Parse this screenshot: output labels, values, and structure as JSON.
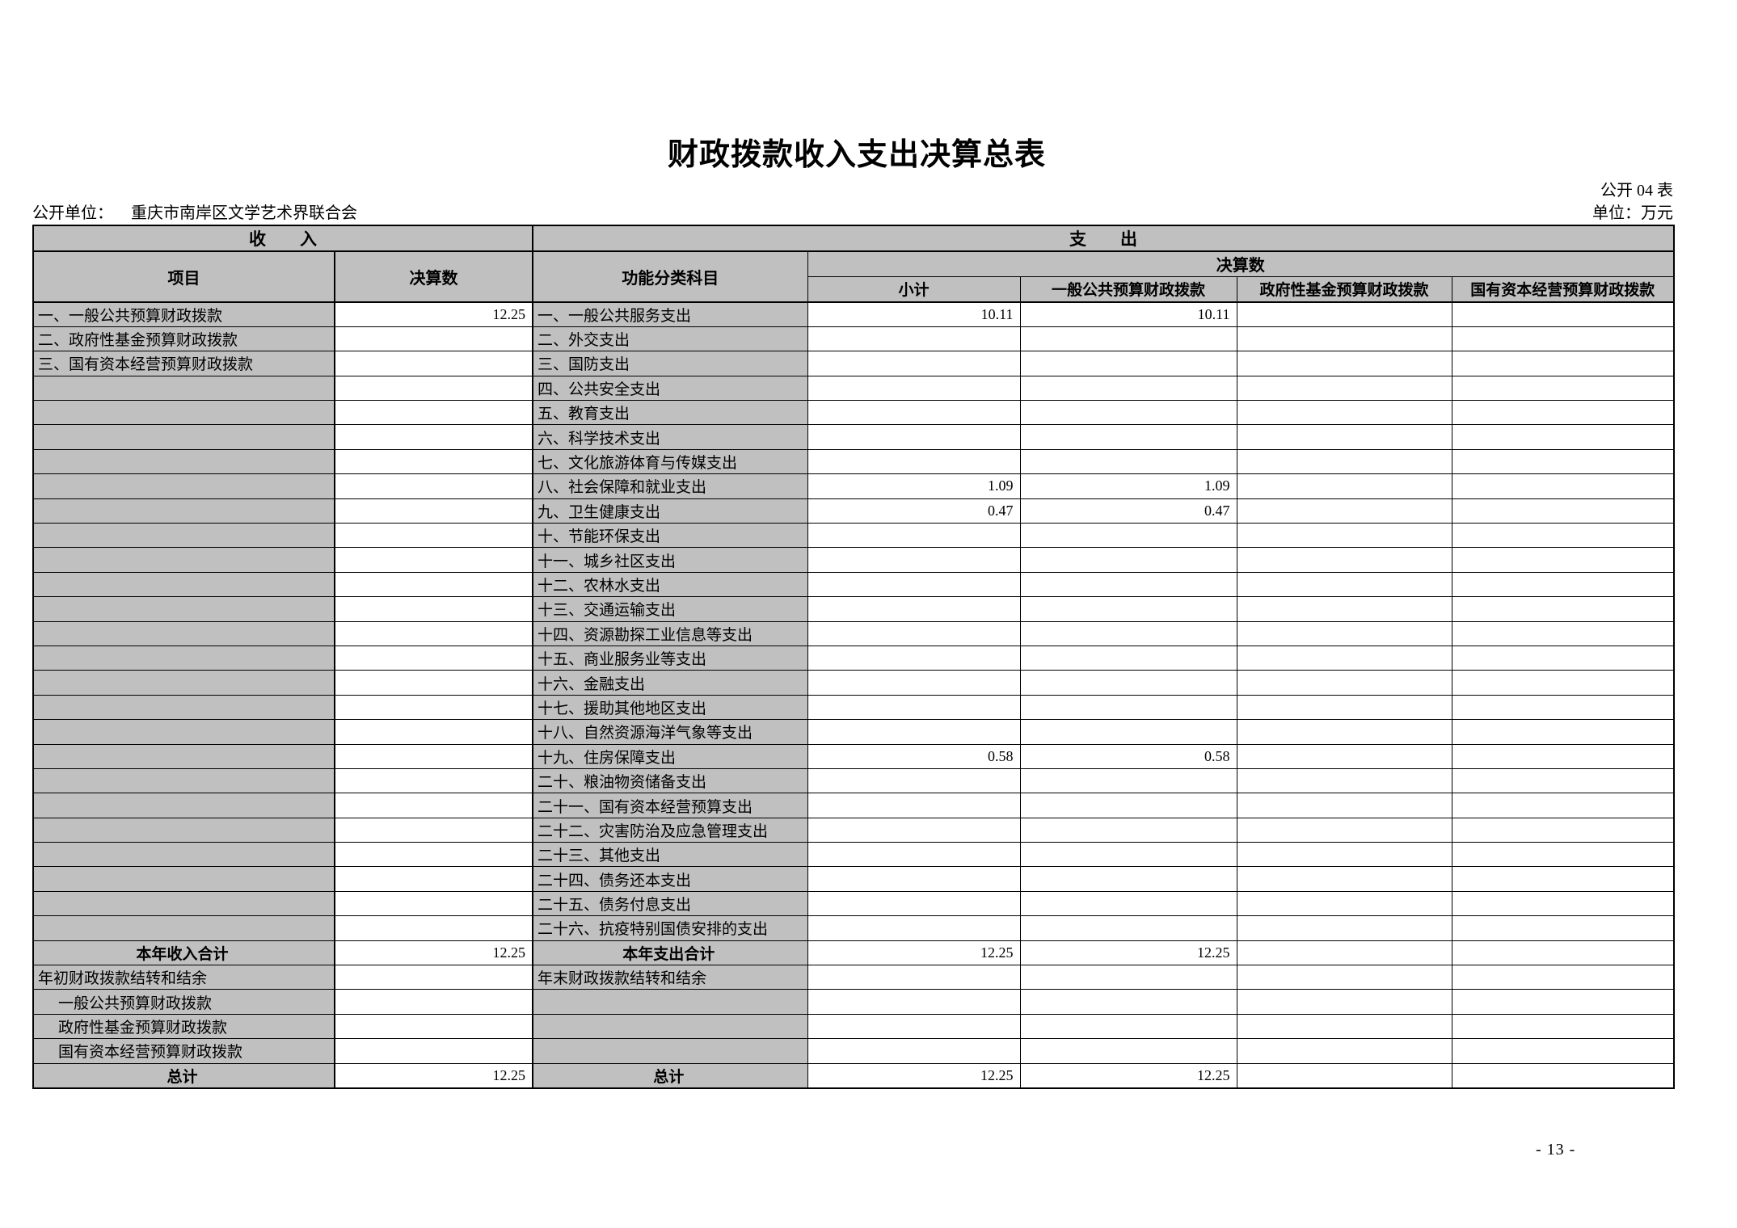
{
  "page": {
    "title": "财政拨款收入支出决算总表",
    "table_code": "公开 04 表",
    "unit_label": "公开单位：",
    "unit_name": "重庆市南岸区文学艺术界联合会",
    "unit_note": "单位：万元",
    "page_number": "- 13 -"
  },
  "table": {
    "section_income": "收　　入",
    "section_expenditure": "支　　出",
    "headers": {
      "item": "项目",
      "final_amount": "决算数",
      "functional_category": "功能分类科目",
      "final_amount_group": "决算数",
      "subtotal": "小计",
      "general_public_budget": "一般公共预算财政拨款",
      "gov_fund_budget": "政府性基金预算财政拨款",
      "state_capital_budget": "国有资本经营预算财政拨款"
    },
    "colors": {
      "header_fill": "#c0c0c0",
      "border": "#000000"
    },
    "rows": [
      {
        "style": "",
        "cells": [
          "一、一般公共预算财政拨款",
          "12.25",
          "一、一般公共服务支出",
          "10.11",
          "10.11",
          "",
          ""
        ]
      },
      {
        "style": "",
        "cells": [
          "二、政府性基金预算财政拨款",
          "",
          "二、外交支出",
          "",
          "",
          "",
          ""
        ]
      },
      {
        "style": "",
        "cells": [
          "三、国有资本经营预算财政拨款",
          "",
          "三、国防支出",
          "",
          "",
          "",
          ""
        ]
      },
      {
        "style": "",
        "cells": [
          "",
          "",
          "四、公共安全支出",
          "",
          "",
          "",
          ""
        ]
      },
      {
        "style": "",
        "cells": [
          "",
          "",
          "五、教育支出",
          "",
          "",
          "",
          ""
        ]
      },
      {
        "style": "",
        "cells": [
          "",
          "",
          "六、科学技术支出",
          "",
          "",
          "",
          ""
        ]
      },
      {
        "style": "",
        "cells": [
          "",
          "",
          "七、文化旅游体育与传媒支出",
          "",
          "",
          "",
          ""
        ]
      },
      {
        "style": "",
        "cells": [
          "",
          "",
          "八、社会保障和就业支出",
          "1.09",
          "1.09",
          "",
          ""
        ]
      },
      {
        "style": "",
        "cells": [
          "",
          "",
          "九、卫生健康支出",
          "0.47",
          "0.47",
          "",
          ""
        ]
      },
      {
        "style": "",
        "cells": [
          "",
          "",
          "十、节能环保支出",
          "",
          "",
          "",
          ""
        ]
      },
      {
        "style": "",
        "cells": [
          "",
          "",
          "十一、城乡社区支出",
          "",
          "",
          "",
          ""
        ]
      },
      {
        "style": "",
        "cells": [
          "",
          "",
          "十二、农林水支出",
          "",
          "",
          "",
          ""
        ]
      },
      {
        "style": "",
        "cells": [
          "",
          "",
          "十三、交通运输支出",
          "",
          "",
          "",
          ""
        ]
      },
      {
        "style": "",
        "cells": [
          "",
          "",
          "十四、资源勘探工业信息等支出",
          "",
          "",
          "",
          ""
        ]
      },
      {
        "style": "",
        "cells": [
          "",
          "",
          "十五、商业服务业等支出",
          "",
          "",
          "",
          ""
        ]
      },
      {
        "style": "",
        "cells": [
          "",
          "",
          "十六、金融支出",
          "",
          "",
          "",
          ""
        ]
      },
      {
        "style": "",
        "cells": [
          "",
          "",
          "十七、援助其他地区支出",
          "",
          "",
          "",
          ""
        ]
      },
      {
        "style": "",
        "cells": [
          "",
          "",
          "十八、自然资源海洋气象等支出",
          "",
          "",
          "",
          ""
        ]
      },
      {
        "style": "",
        "cells": [
          "",
          "",
          "十九、住房保障支出",
          "0.58",
          "0.58",
          "",
          ""
        ]
      },
      {
        "style": "",
        "cells": [
          "",
          "",
          "二十、粮油物资储备支出",
          "",
          "",
          "",
          ""
        ]
      },
      {
        "style": "",
        "cells": [
          "",
          "",
          "二十一、国有资本经营预算支出",
          "",
          "",
          "",
          ""
        ]
      },
      {
        "style": "",
        "cells": [
          "",
          "",
          "二十二、灾害防治及应急管理支出",
          "",
          "",
          "",
          ""
        ]
      },
      {
        "style": "",
        "cells": [
          "",
          "",
          "二十三、其他支出",
          "",
          "",
          "",
          ""
        ]
      },
      {
        "style": "",
        "cells": [
          "",
          "",
          "二十四、债务还本支出",
          "",
          "",
          "",
          ""
        ]
      },
      {
        "style": "",
        "cells": [
          "",
          "",
          "二十五、债务付息支出",
          "",
          "",
          "",
          ""
        ]
      },
      {
        "style": "",
        "cells": [
          "",
          "",
          "二十六、抗疫特别国债安排的支出",
          "",
          "",
          "",
          ""
        ]
      },
      {
        "style": "total",
        "cells": [
          "本年收入合计",
          "12.25",
          "本年支出合计",
          "12.25",
          "12.25",
          "",
          ""
        ]
      },
      {
        "style": "",
        "cells": [
          "年初财政拨款结转和结余",
          "",
          "年末财政拨款结转和结余",
          "",
          "",
          "",
          ""
        ]
      },
      {
        "style": "indent",
        "cells": [
          "一般公共预算财政拨款",
          "",
          "",
          "",
          "",
          "",
          ""
        ]
      },
      {
        "style": "indent",
        "cells": [
          "政府性基金预算财政拨款",
          "",
          "",
          "",
          "",
          "",
          ""
        ]
      },
      {
        "style": "indent",
        "cells": [
          "国有资本经营预算财政拨款",
          "",
          "",
          "",
          "",
          "",
          ""
        ]
      },
      {
        "style": "total",
        "cells": [
          "总计",
          "12.25",
          "总计",
          "12.25",
          "12.25",
          "",
          ""
        ]
      }
    ]
  }
}
